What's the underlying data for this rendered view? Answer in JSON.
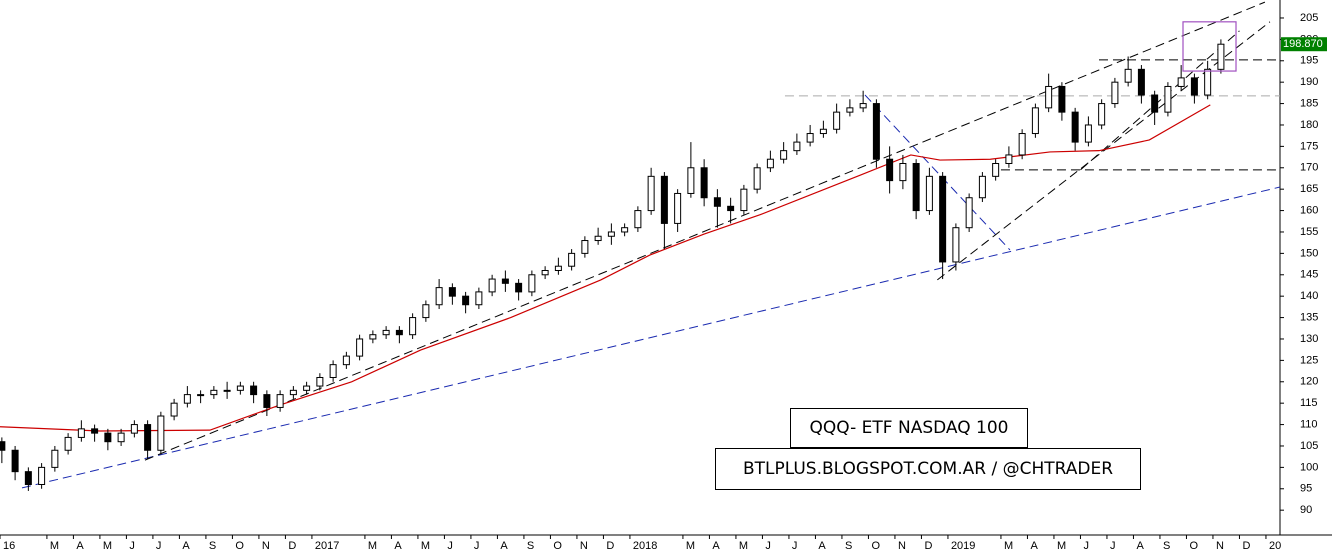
{
  "chart_data": {
    "type": "candlestick",
    "color": "#000000",
    "x": [
      0.3,
      0.8,
      1.3,
      1.8,
      2.3,
      2.8,
      3.3,
      3.8,
      4.3,
      4.8,
      5.3,
      5.8,
      6.3,
      6.8,
      7.3,
      7.8,
      8.3,
      8.8,
      9.3,
      9.8,
      10.3,
      10.8,
      11.3,
      11.8,
      12.3,
      12.8,
      13.3,
      13.8,
      14.3,
      14.8,
      15.3,
      15.8,
      16.3,
      16.8,
      17.3,
      17.8,
      18.3,
      18.8,
      19.3,
      19.8,
      20.3,
      20.8,
      21.3,
      21.8,
      22.3,
      22.8,
      23.3,
      23.8,
      24.3,
      24.8,
      25.3,
      25.8,
      26.3,
      26.8,
      27.3,
      27.8,
      28.3,
      28.8,
      29.3,
      29.8,
      30.3,
      30.8,
      31.3,
      31.8,
      32.3,
      32.8,
      33.3,
      33.8,
      34.3,
      34.8,
      35.3,
      35.8,
      36.3,
      36.8,
      37.3,
      37.8,
      38.3,
      38.8,
      39.3,
      39.8,
      40.3,
      40.8,
      41.3,
      41.8,
      42.3,
      42.8,
      43.3,
      43.8,
      44.3,
      44.8,
      45.3,
      45.8,
      46.3
    ],
    "open": [
      106,
      104,
      99,
      96,
      100,
      104,
      107,
      109,
      108,
      106,
      108,
      110,
      104,
      112,
      115,
      117,
      117,
      118,
      118,
      119,
      117,
      114,
      117,
      118,
      119,
      121,
      124,
      126,
      130,
      131,
      132,
      131,
      135,
      138,
      142,
      140,
      138,
      141,
      144,
      143,
      141,
      145,
      146,
      147,
      150,
      153,
      154,
      155,
      156,
      160,
      168,
      157,
      164,
      170,
      163,
      161,
      160,
      165,
      170,
      172,
      174,
      176,
      178,
      179,
      183,
      184,
      185,
      172,
      167,
      171,
      160,
      168,
      148,
      156,
      163,
      168,
      171,
      173,
      178,
      184,
      189,
      183,
      176,
      180,
      185,
      190,
      193,
      187,
      183,
      189,
      191,
      187,
      193
    ],
    "high": [
      107,
      105,
      100,
      101,
      105,
      108,
      111,
      110,
      109,
      109,
      111,
      111,
      113,
      116,
      119,
      118,
      119,
      120,
      120,
      120,
      118,
      118,
      119,
      120,
      122,
      125,
      127,
      131,
      132,
      133,
      133,
      136,
      139,
      144,
      143,
      141,
      142,
      145,
      146,
      144,
      146,
      147,
      149,
      151,
      154,
      156,
      157,
      157,
      161,
      170,
      169,
      165,
      176,
      172,
      165,
      163,
      166,
      171,
      174,
      176,
      178,
      180,
      181,
      185,
      186,
      188,
      186,
      175,
      173,
      172,
      170,
      169,
      157,
      164,
      169,
      172,
      175,
      179,
      185,
      192,
      190,
      184,
      182,
      186,
      191,
      196,
      194,
      188,
      190,
      194,
      192,
      195,
      200
    ],
    "low": [
      101,
      97,
      94.5,
      95,
      99,
      103,
      106,
      106,
      104,
      105,
      107,
      102,
      103,
      111,
      114,
      115,
      116,
      116,
      117,
      115,
      112,
      113,
      116,
      117,
      118,
      120,
      123,
      125,
      129,
      130,
      129,
      130,
      134,
      137,
      138,
      136,
      137,
      140,
      141,
      139,
      140,
      144,
      145,
      146,
      149,
      152,
      152,
      154,
      155,
      159,
      151,
      155,
      163,
      161,
      156,
      157,
      159,
      164,
      169,
      171,
      173,
      175,
      177,
      178,
      182,
      183,
      170,
      164,
      165,
      158,
      159,
      144,
      146,
      155,
      162,
      167,
      170,
      172,
      177,
      183,
      181,
      174,
      175,
      179,
      184,
      189,
      185,
      180,
      182,
      188,
      185,
      186,
      192
    ],
    "close": [
      104,
      99,
      96,
      100,
      104,
      107,
      109,
      108,
      106,
      108,
      110,
      104,
      112,
      115,
      117,
      117,
      118,
      118,
      119,
      117,
      114,
      117,
      118,
      119,
      121,
      124,
      126,
      130,
      131,
      132,
      131,
      135,
      138,
      142,
      140,
      138,
      141,
      144,
      143,
      141,
      145,
      146,
      147,
      150,
      153,
      154,
      155,
      156,
      160,
      168,
      157,
      164,
      170,
      163,
      161,
      160,
      165,
      170,
      172,
      174,
      176,
      178,
      179,
      183,
      184,
      185,
      172,
      167,
      171,
      160,
      168,
      148,
      156,
      163,
      168,
      171,
      173,
      178,
      184,
      189,
      183,
      176,
      180,
      185,
      190,
      193,
      187,
      183,
      189,
      191,
      187,
      193,
      198.87
    ],
    "xlim": [
      0.23,
      48.53
    ],
    "xticks": [
      {
        "value": 0.23,
        "label": "16"
      },
      {
        "value": 2,
        "label": "M"
      },
      {
        "value": 3,
        "label": "A"
      },
      {
        "value": 4,
        "label": "M"
      },
      {
        "value": 5,
        "label": "J"
      },
      {
        "value": 6,
        "label": "J"
      },
      {
        "value": 7,
        "label": "A"
      },
      {
        "value": 8,
        "label": "S"
      },
      {
        "value": 9,
        "label": "O"
      },
      {
        "value": 10,
        "label": "N"
      },
      {
        "value": 11,
        "label": "D"
      },
      {
        "value": 12,
        "label": "2017"
      },
      {
        "value": 14,
        "label": "M"
      },
      {
        "value": 15,
        "label": "A"
      },
      {
        "value": 16,
        "label": "M"
      },
      {
        "value": 17,
        "label": "J"
      },
      {
        "value": 18,
        "label": "J"
      },
      {
        "value": 19,
        "label": "A"
      },
      {
        "value": 20,
        "label": "S"
      },
      {
        "value": 21,
        "label": "O"
      },
      {
        "value": 22,
        "label": "N"
      },
      {
        "value": 23,
        "label": "D"
      },
      {
        "value": 24,
        "label": "2018"
      },
      {
        "value": 26,
        "label": "M"
      },
      {
        "value": 27,
        "label": "A"
      },
      {
        "value": 28,
        "label": "M"
      },
      {
        "value": 29,
        "label": "J"
      },
      {
        "value": 30,
        "label": "J"
      },
      {
        "value": 31,
        "label": "A"
      },
      {
        "value": 32,
        "label": "S"
      },
      {
        "value": 33,
        "label": "O"
      },
      {
        "value": 34,
        "label": "N"
      },
      {
        "value": 35,
        "label": "D"
      },
      {
        "value": 36,
        "label": "2019"
      },
      {
        "value": 38,
        "label": "M"
      },
      {
        "value": 39,
        "label": "A"
      },
      {
        "value": 40,
        "label": "M"
      },
      {
        "value": 41,
        "label": "J"
      },
      {
        "value": 42,
        "label": "J"
      },
      {
        "value": 43,
        "label": "A"
      },
      {
        "value": 44,
        "label": "S"
      },
      {
        "value": 45,
        "label": "O"
      },
      {
        "value": 46,
        "label": "N"
      },
      {
        "value": 47,
        "label": "D"
      },
      {
        "value": 48,
        "label": "20"
      }
    ],
    "ylim": [
      84.2,
      209.2
    ],
    "yticks": [
      90,
      95,
      100,
      105,
      110,
      115,
      120,
      125,
      130,
      135,
      140,
      145,
      150,
      155,
      160,
      165,
      170,
      175,
      180,
      185,
      190,
      195,
      200,
      205
    ],
    "grid": false,
    "last_price": {
      "value": 198.87,
      "label": "198.870",
      "color": "#008000"
    },
    "moving_average": {
      "color": "#cc0000",
      "x": [
        0.23,
        4,
        8.15,
        10.8,
        13.5,
        16.1,
        19.5,
        22.9,
        24.75,
        26.8,
        28.9,
        32.7,
        34.6,
        35.7,
        37.6,
        39.85,
        41.7,
        43.6,
        45.9
      ],
      "values": [
        109.5,
        108.5,
        108.7,
        114.6,
        120,
        127.4,
        135,
        143.8,
        149.6,
        154.5,
        159,
        168.3,
        173,
        171.8,
        172,
        173.7,
        174,
        176.5,
        184.7
      ]
    },
    "trendlines": [
      {
        "x": [
          1.06,
          48.53
        ],
        "y": [
          95.2,
          165.5
        ],
        "color": "#1a2ab0"
      },
      {
        "x": [
          5.7,
          47.96
        ],
        "y": [
          101.7,
          208.7
        ],
        "color": "#000000"
      },
      {
        "x": [
          32.87,
          38.34
        ],
        "y": [
          187,
          150.8
        ],
        "color": "#1a2ab0"
      },
      {
        "x": [
          35.6,
          48.15
        ],
        "y": [
          143.8,
          204.1
        ],
        "color": "#000000"
      },
      {
        "x": [
          41,
          47
        ],
        "y": [
          169.5,
          202
        ],
        "color": "#000000"
      },
      {
        "x": [
          38,
          48.53
        ],
        "y": [
          169.5,
          169.5
        ],
        "color": "#000000"
      },
      {
        "x": [
          41.7,
          48.53
        ],
        "y": [
          195.2,
          195.2
        ],
        "color": "#000000"
      },
      {
        "x": [
          29.85,
          48.53
        ],
        "y": [
          186.8,
          186.8
        ],
        "color": "#aaaaaa"
      }
    ],
    "highlight_box": {
      "x": [
        44.87,
        46.87
      ],
      "y": [
        192.6,
        204.1
      ],
      "color": "#a050c0"
    },
    "annotations": [
      "QQQ- ETF NASDAQ 100",
      "BTLPLUS.BLOGSPOT.COM.AR / @CHTRADER"
    ]
  }
}
